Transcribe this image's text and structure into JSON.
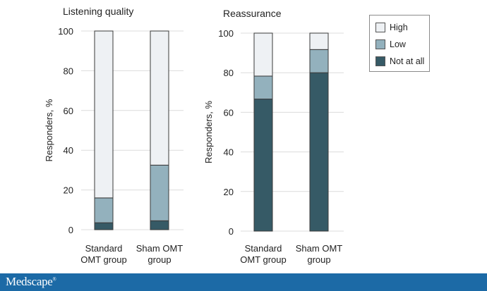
{
  "colors": {
    "High": "#eef1f4",
    "Low": "#93b1bd",
    "Not at all": "#365a66",
    "stroke": "#3a3a3a",
    "grid": "#dcdcdc"
  },
  "legend": {
    "items": [
      "High",
      "Low",
      "Not at all"
    ]
  },
  "footer": {
    "logo_text": "Medscape",
    "logo_mark": "®"
  },
  "chart_data": [
    {
      "type": "bar",
      "stacked": true,
      "title": "Listening quality",
      "ylabel": "Responders, %",
      "xlabel": "",
      "ylim": [
        0,
        100
      ],
      "yticks": [
        0,
        20,
        40,
        60,
        80,
        100
      ],
      "grid": true,
      "categories": [
        [
          "Standard",
          "OMT group"
        ],
        [
          "Sham OMT",
          "group"
        ]
      ],
      "series": [
        {
          "name": "Not at all",
          "values": [
            3.5,
            4.5
          ]
        },
        {
          "name": "Low",
          "values": [
            12.5,
            28
          ]
        },
        {
          "name": "High",
          "values": [
            84,
            67.5
          ]
        }
      ]
    },
    {
      "type": "bar",
      "stacked": true,
      "title": "Reassurance",
      "ylabel": "Responders, %",
      "xlabel": "",
      "ylim": [
        0,
        100
      ],
      "yticks": [
        0,
        20,
        40,
        60,
        80,
        100
      ],
      "grid": true,
      "legend_position": "top-right",
      "categories": [
        [
          "Standard",
          "OMT group"
        ],
        [
          "Sham OMT",
          "group"
        ]
      ],
      "series": [
        {
          "name": "Not at all",
          "values": [
            66.7,
            80
          ]
        },
        {
          "name": "Low",
          "values": [
            11.6,
            11.7
          ]
        },
        {
          "name": "High",
          "values": [
            21.7,
            8.3
          ]
        }
      ]
    }
  ]
}
